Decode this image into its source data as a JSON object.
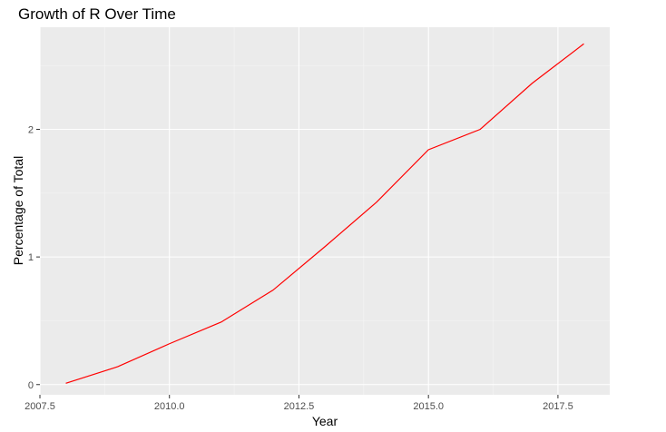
{
  "chart_data": {
    "type": "line",
    "title": "Growth of R Over Time",
    "xlabel": "Year",
    "ylabel": "Percentage of Total",
    "xlim": [
      2007.5,
      2018.5
    ],
    "ylim": [
      -0.08,
      2.8
    ],
    "x_ticks": [
      2007.5,
      2010.0,
      2012.5,
      2015.0,
      2017.5
    ],
    "x_tick_labels": [
      "2007.5",
      "2010.0",
      "2012.5",
      "2015.0",
      "2017.5"
    ],
    "y_ticks": [
      0,
      1,
      2
    ],
    "y_tick_labels": [
      "0",
      "1",
      "2"
    ],
    "grid": true,
    "line_color": "#ff0000",
    "panel_color": "#ebebeb",
    "series": [
      {
        "x": [
          2008,
          2009,
          2010,
          2011,
          2012,
          2013,
          2014,
          2015,
          2016,
          2017,
          2018
        ],
        "y": [
          0.01,
          0.14,
          0.32,
          0.49,
          0.74,
          1.08,
          1.43,
          1.84,
          2.0,
          2.36,
          2.67
        ]
      }
    ]
  }
}
